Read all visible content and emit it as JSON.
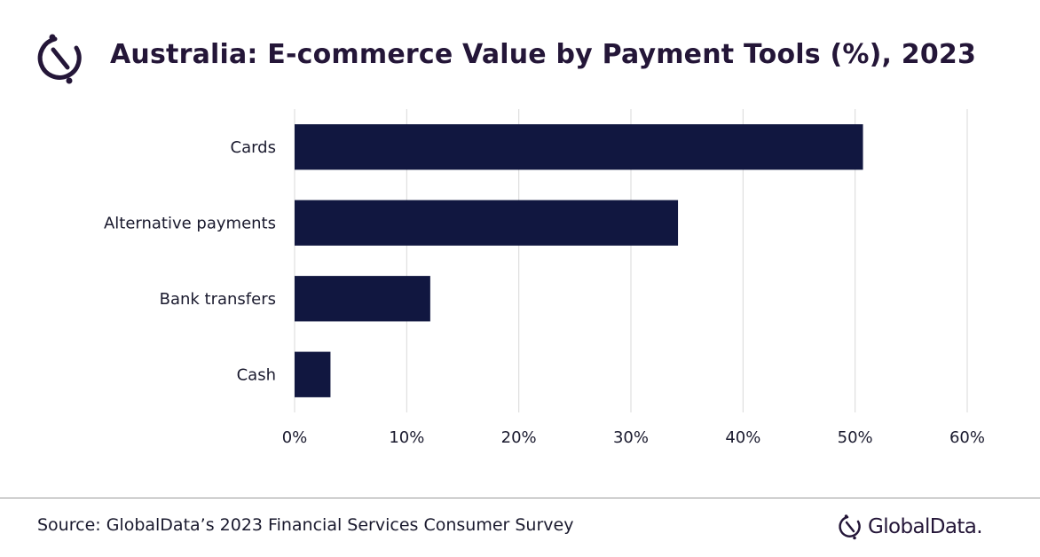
{
  "header": {
    "title": "Australia: E-commerce Value by Payment Tools (%), 2023",
    "logo_icon": "globaldata-mark-icon"
  },
  "footer": {
    "source": "Source: GlobalData’s 2023 Financial Services Consumer Survey",
    "brand_name": "GlobalData."
  },
  "colors": {
    "bar": "#111740",
    "title": "#241638",
    "gridline": "#d9d9d9",
    "text": "#1a1a2e"
  },
  "chart_data": {
    "type": "bar",
    "orientation": "horizontal",
    "title": "Australia: E-commerce Value by Payment Tools (%), 2023",
    "categories": [
      "Cards",
      "Alternative payments",
      "Bank transfers",
      "Cash"
    ],
    "values": [
      50.7,
      34.2,
      12.1,
      3.2
    ],
    "unit": "%",
    "xlim": [
      0,
      60
    ],
    "xticks": [
      "0%",
      "10%",
      "20%",
      "30%",
      "40%",
      "50%",
      "60%"
    ],
    "grid": true,
    "legend": "none"
  }
}
